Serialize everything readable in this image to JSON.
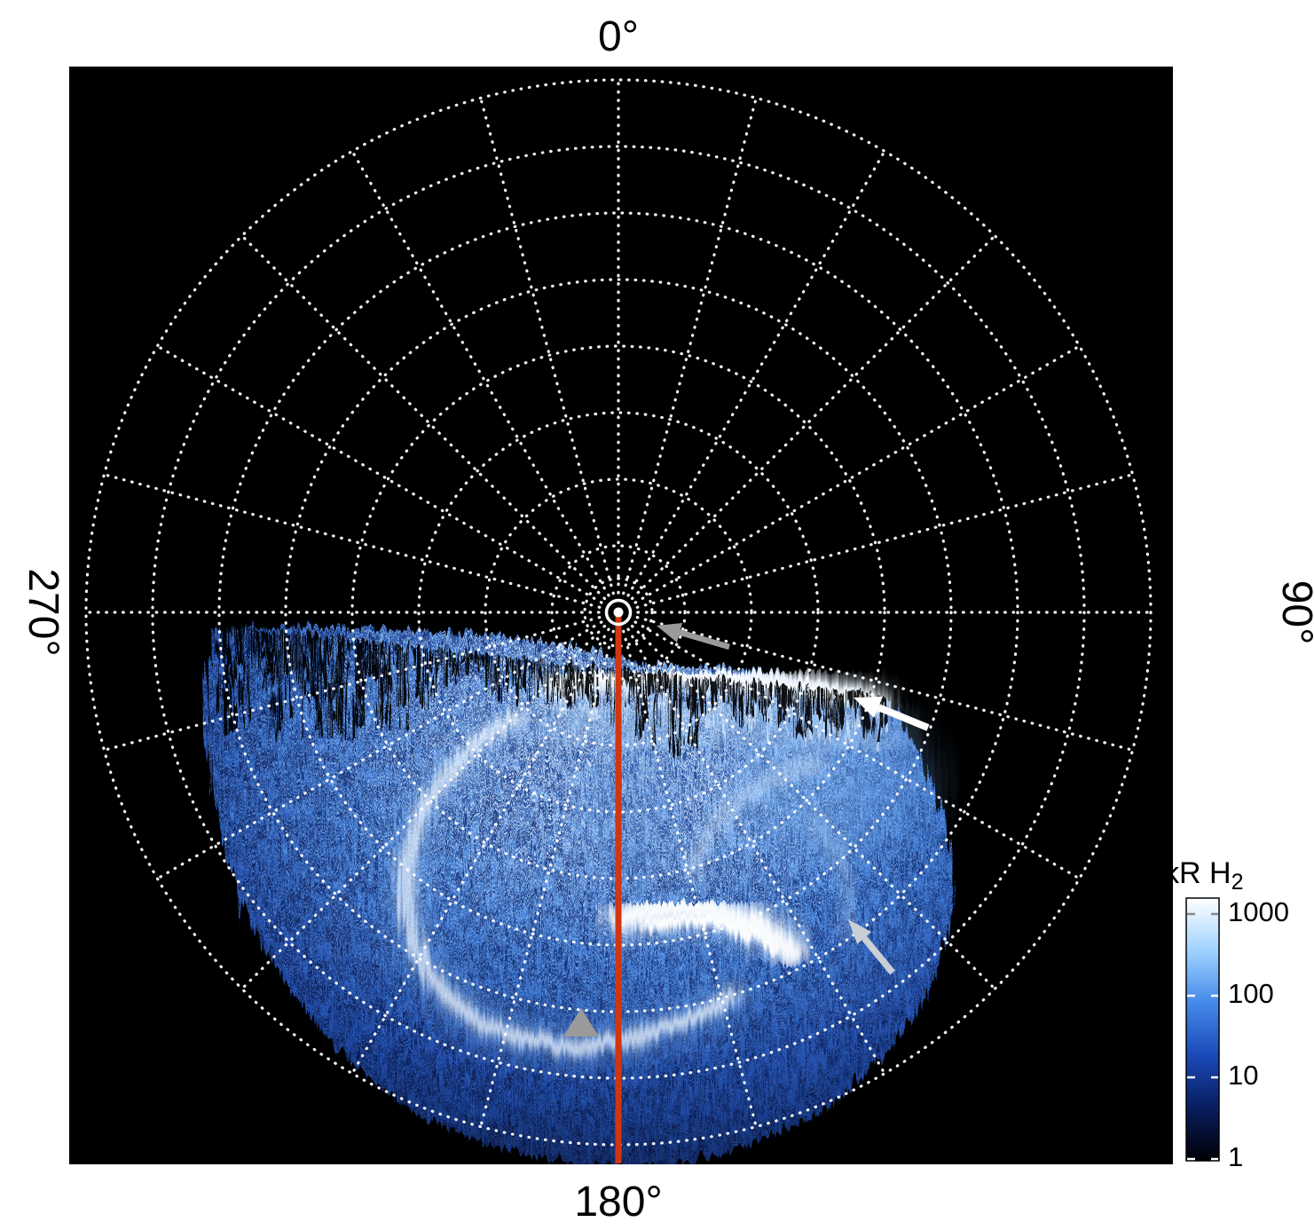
{
  "figure": {
    "background": "#ffffff",
    "plot_background": "#000000"
  },
  "labels": {
    "top": "0°",
    "right": "90°",
    "bottom": "180°",
    "left": "270°"
  },
  "colorbar": {
    "title": "kR H",
    "title_sub": "2",
    "ticks": [
      "1000",
      "100",
      "10",
      "1"
    ]
  },
  "chart_data": {
    "type": "heatmap",
    "projection": "polar",
    "quantity": "H2 ultraviolet auroral emission brightness",
    "units": "kR H2",
    "colorscale": "log",
    "angle_tick_labels": [
      "0°",
      "90°",
      "180°",
      "270°"
    ],
    "grid": {
      "rings": 8,
      "spoke_spacing_deg": 15,
      "style": "white dotted polar graticule on black background"
    },
    "colorbar": {
      "label": "kR H2",
      "tick_values": [
        1000,
        100,
        10,
        1
      ],
      "gradient": [
        "#ffffff",
        "#9fd2ff",
        "#4489e9",
        "#1a49b8",
        "#081d5e",
        "#000004"
      ]
    },
    "meridian_marker": {
      "angle_deg": 180,
      "color": "#d13611",
      "description": "solid red line from the pole along the 180° meridian to the image edge"
    },
    "coverage": "Auroral image data fills the sector from about 95° through 180° to about 268°; the upper half of the polar grid contains no data (black). The dayside data boundary is a ragged comb-like edge just below the 90°–270° line.",
    "features": [
      {
        "name": "bright limb band along dayside data edge",
        "location": "90°–120° sector at the data boundary",
        "brightness_kR": "~1000"
      },
      {
        "name": "main auroral oval",
        "location": "C-shaped bright arc around the pole, open toward 135°",
        "brightness_kR": "~200–1000"
      },
      {
        "name": "bright polar emission patch",
        "location": "near the 180° meridian inside the oval",
        "brightness_kR": "~1000"
      },
      {
        "name": "diffuse speckled emission",
        "location": "throughout the imaged sector",
        "brightness_kR": "~1–100"
      }
    ],
    "annotations": [
      {
        "marker": "gray arrow",
        "color": "#9a9a9a",
        "points_to": "central pole dot"
      },
      {
        "marker": "white arrow",
        "color": "#ffffff",
        "points_to": "bright limb band at the data edge near 100°"
      },
      {
        "marker": "light gray arrow",
        "color": "#c9cfd4",
        "points_to": "outer emission boundary in the 135° sector"
      },
      {
        "marker": "gray triangle",
        "color": "#9a9a9a",
        "points_to": "location on the 180° meridian near the outer edge"
      }
    ]
  }
}
